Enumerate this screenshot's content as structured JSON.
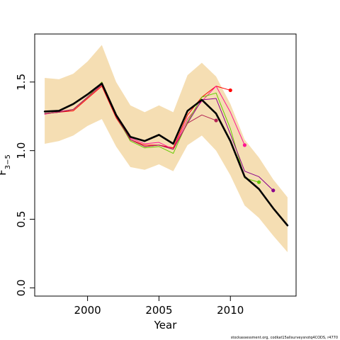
{
  "chart_data": {
    "type": "line",
    "xlabel": "Year",
    "ylabel": "F",
    "ylabel_subscript": "3−5",
    "xlim": [
      1996.3,
      2014.6
    ],
    "ylim": [
      -0.06,
      1.85
    ],
    "xticks": [
      2000,
      2005,
      2010
    ],
    "yticks": [
      0.0,
      0.5,
      1.0,
      1.5
    ],
    "ytick_labels": [
      "0.0",
      "0.5",
      "1.0",
      "1.5"
    ],
    "grid": false,
    "credit": "stockassessment.org, codkat15allsurveysnotq4CODS, r4770",
    "confidence_band": {
      "color": "#f5deb3",
      "x": [
        1997,
        1998,
        1999,
        2000,
        2001,
        2002,
        2003,
        2004,
        2005,
        2006,
        2007,
        2008,
        2009,
        2010,
        2011,
        2012,
        2013,
        2014
      ],
      "lower": [
        1.05,
        1.07,
        1.11,
        1.18,
        1.23,
        1.03,
        0.88,
        0.86,
        0.9,
        0.85,
        1.04,
        1.11,
        1.0,
        0.82,
        0.6,
        0.51,
        0.38,
        0.26
      ],
      "upper": [
        1.53,
        1.52,
        1.56,
        1.65,
        1.77,
        1.5,
        1.33,
        1.28,
        1.33,
        1.28,
        1.55,
        1.64,
        1.54,
        1.34,
        1.08,
        0.95,
        0.79,
        0.66
      ]
    },
    "series": [
      {
        "color": "#000000",
        "width": 2.6,
        "x": [
          1997,
          1998,
          1999,
          2000,
          2001,
          2002,
          2003,
          2004,
          2005,
          2006,
          2007,
          2008,
          2009,
          2010,
          2011,
          2012,
          2013,
          2014
        ],
        "values": [
          1.285,
          1.29,
          1.34,
          1.41,
          1.49,
          1.26,
          1.1,
          1.07,
          1.115,
          1.05,
          1.29,
          1.37,
          1.27,
          1.07,
          0.81,
          0.72,
          0.58,
          0.455
        ]
      },
      {
        "color": "#ff0000",
        "width": 1,
        "x": [
          1997,
          1998,
          1999,
          2000,
          2001,
          2002,
          2003,
          2004,
          2005,
          2006,
          2007,
          2008,
          2009,
          2010
        ],
        "values": [
          1.27,
          1.28,
          1.29,
          1.38,
          1.47,
          1.24,
          1.08,
          1.04,
          1.04,
          1.02,
          1.26,
          1.39,
          1.47,
          1.44
        ],
        "end_marker": true
      },
      {
        "color": "#ff1493",
        "width": 1,
        "x": [
          1997,
          1998,
          1999,
          2000,
          2001,
          2002,
          2003,
          2004,
          2005,
          2006,
          2007,
          2008,
          2009,
          2010,
          2011
        ],
        "values": [
          1.265,
          1.285,
          1.3,
          1.39,
          1.48,
          1.25,
          1.09,
          1.05,
          1.06,
          1.01,
          1.23,
          1.36,
          1.47,
          1.28,
          1.04
        ],
        "end_marker": true
      },
      {
        "color": "#66cc00",
        "width": 1,
        "x": [
          1997,
          1998,
          1999,
          2000,
          2001,
          2002,
          2003,
          2004,
          2005,
          2006,
          2007,
          2008,
          2009,
          2010,
          2011,
          2012
        ],
        "values": [
          1.27,
          1.28,
          1.3,
          1.39,
          1.5,
          1.25,
          1.07,
          1.02,
          1.03,
          0.98,
          1.21,
          1.39,
          1.42,
          1.16,
          0.8,
          0.77
        ],
        "end_marker": true
      },
      {
        "color": "#8b008b",
        "width": 1,
        "x": [
          1997,
          1998,
          1999,
          2000,
          2001,
          2002,
          2003,
          2004,
          2005,
          2006,
          2007,
          2008,
          2009,
          2010,
          2011,
          2012,
          2013
        ],
        "values": [
          1.27,
          1.28,
          1.3,
          1.39,
          1.48,
          1.25,
          1.08,
          1.03,
          1.04,
          1.01,
          1.2,
          1.37,
          1.38,
          1.12,
          0.85,
          0.81,
          0.71
        ],
        "end_marker": true
      },
      {
        "color": "#b22252",
        "width": 1,
        "x": [
          1997,
          1998,
          1999,
          2000,
          2001,
          2002,
          2003,
          2004,
          2005,
          2006,
          2007,
          2008,
          2009
        ],
        "values": [
          1.27,
          1.28,
          1.3,
          1.39,
          1.48,
          1.25,
          1.08,
          1.03,
          1.04,
          1.01,
          1.2,
          1.26,
          1.22
        ],
        "end_marker": true
      }
    ]
  }
}
